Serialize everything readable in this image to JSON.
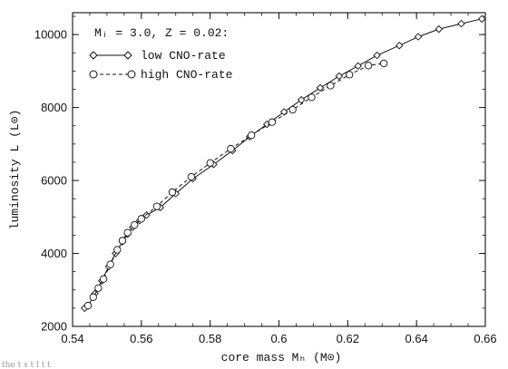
{
  "chart_data": {
    "type": "line",
    "title": "",
    "xlabel": "core mass  Mₕ  (M⊙)",
    "ylabel": "luminosity  L  (L⊙)",
    "xlim": [
      0.54,
      0.66
    ],
    "ylim": [
      2000,
      10600
    ],
    "xticks": [
      "0.54",
      "0.56",
      "0.58",
      "0.6",
      "0.62",
      "0.64",
      "0.66"
    ],
    "yticks": [
      "2000",
      "4000",
      "6000",
      "8000",
      "10000"
    ],
    "legend": {
      "header": "Mᵢ = 3.0,  Z = 0.02:",
      "position": "top-left"
    },
    "series": [
      {
        "name": "low CNO-rate",
        "marker": "diamond",
        "line": "solid",
        "x": [
          0.5435,
          0.5445,
          0.5465,
          0.5485,
          0.5505,
          0.5525,
          0.5545,
          0.556,
          0.5575,
          0.5595,
          0.5615,
          0.5655,
          0.57,
          0.575,
          0.581,
          0.5865,
          0.5915,
          0.5965,
          0.6015,
          0.6065,
          0.612,
          0.6175,
          0.623,
          0.6285,
          0.635,
          0.6405,
          0.6465,
          0.653,
          0.659
        ],
        "y": [
          2500,
          2560,
          2900,
          3250,
          3640,
          4000,
          4320,
          4530,
          4720,
          4900,
          5050,
          5260,
          5640,
          6050,
          6440,
          6820,
          7200,
          7540,
          7880,
          8210,
          8540,
          8860,
          9140,
          9430,
          9700,
          9940,
          10150,
          10300,
          10430
        ]
      },
      {
        "name": "high CNO-rate",
        "marker": "circle",
        "line": "dashed",
        "x": [
          0.5445,
          0.546,
          0.5475,
          0.549,
          0.551,
          0.553,
          0.5545,
          0.556,
          0.558,
          0.56,
          0.5645,
          0.569,
          0.5745,
          0.58,
          0.586,
          0.592,
          0.598,
          0.604,
          0.6095,
          0.615,
          0.6205,
          0.626,
          0.6305
        ],
        "y": [
          2570,
          2800,
          3050,
          3300,
          3700,
          4100,
          4350,
          4570,
          4780,
          4950,
          5290,
          5680,
          6100,
          6480,
          6870,
          7240,
          7600,
          7940,
          8280,
          8600,
          8900,
          9150,
          9210
        ]
      }
    ],
    "grid": false
  },
  "footer": {
    "partial_caption": "the  t  s  t  l  t  t"
  }
}
